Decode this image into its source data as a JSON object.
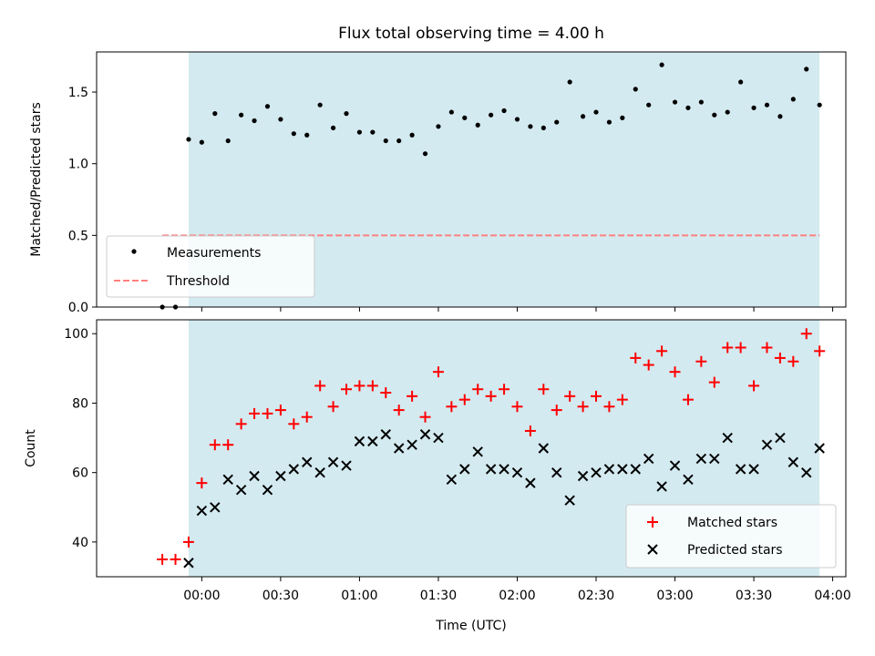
{
  "colors": {
    "observing_band": "#d3eaf0",
    "measurement": "#000000",
    "threshold": "#ff8080",
    "matched": "#ff0000",
    "predicted": "#000000",
    "axes": "#000000"
  },
  "chart_data": [
    {
      "type": "scatter",
      "title": "Flux total observing time = 4.00 h",
      "xlabel": "",
      "ylabel": "Matched/Predicted stars",
      "xlim": [
        "23:20",
        "04:05"
      ],
      "ylim": [
        0,
        1.78
      ],
      "yticks": [
        0.0,
        0.5,
        1.0,
        1.5
      ],
      "ytick_labels": [
        "0.0",
        "0.5",
        "1.0",
        "1.5"
      ],
      "x_tick_positions": [
        "00:00",
        "00:30",
        "01:00",
        "01:30",
        "02:00",
        "02:30",
        "03:00",
        "03:30",
        "04:00"
      ],
      "observing_window": [
        "23:55",
        "03:55"
      ],
      "legend_location": "lower-left",
      "series": [
        {
          "name": "Measurements",
          "marker": "dot",
          "x": [
            "23:45",
            "23:50",
            "23:55",
            "00:00",
            "00:05",
            "00:10",
            "00:15",
            "00:20",
            "00:25",
            "00:30",
            "00:35",
            "00:40",
            "00:45",
            "00:50",
            "00:55",
            "01:00",
            "01:05",
            "01:10",
            "01:15",
            "01:20",
            "01:25",
            "01:30",
            "01:35",
            "01:40",
            "01:45",
            "01:50",
            "01:55",
            "02:00",
            "02:05",
            "02:10",
            "02:15",
            "02:20",
            "02:25",
            "02:30",
            "02:35",
            "02:40",
            "02:45",
            "02:50",
            "02:55",
            "03:00",
            "03:05",
            "03:10",
            "03:15",
            "03:20",
            "03:25",
            "03:30",
            "03:35",
            "03:40",
            "03:45",
            "03:50",
            "03:55"
          ],
          "y": [
            0.0,
            0.0,
            1.17,
            1.15,
            1.35,
            1.16,
            1.34,
            1.3,
            1.4,
            1.31,
            1.21,
            1.2,
            1.41,
            1.25,
            1.35,
            1.22,
            1.22,
            1.16,
            1.16,
            1.2,
            1.07,
            1.26,
            1.36,
            1.32,
            1.27,
            1.34,
            1.37,
            1.31,
            1.26,
            1.25,
            1.29,
            1.57,
            1.33,
            1.36,
            1.29,
            1.32,
            1.52,
            1.41,
            1.69,
            1.43,
            1.39,
            1.43,
            1.34,
            1.36,
            1.57,
            1.39,
            1.41,
            1.33,
            1.45,
            1.66,
            1.41
          ]
        },
        {
          "name": "Threshold",
          "style": "dashed",
          "x": [
            "23:45",
            "03:55"
          ],
          "y": [
            0.5,
            0.5
          ]
        }
      ]
    },
    {
      "type": "scatter",
      "title": "",
      "xlabel": "Time (UTC)",
      "ylabel": "Count",
      "xlim": [
        "23:20",
        "04:05"
      ],
      "ylim": [
        30,
        104
      ],
      "yticks": [
        40,
        60,
        80,
        100
      ],
      "ytick_labels": [
        "40",
        "60",
        "80",
        "100"
      ],
      "xticks": [
        "00:00",
        "00:30",
        "01:00",
        "01:30",
        "02:00",
        "02:30",
        "03:00",
        "03:30",
        "04:00"
      ],
      "xtick_labels": [
        "00:00",
        "00:30",
        "01:00",
        "01:30",
        "02:00",
        "02:30",
        "03:00",
        "03:30",
        "04:00"
      ],
      "observing_window": [
        "23:55",
        "03:55"
      ],
      "legend_location": "lower-right",
      "series": [
        {
          "name": "Matched stars",
          "marker": "plus",
          "x": [
            "23:45",
            "23:50",
            "23:55",
            "00:00",
            "00:05",
            "00:10",
            "00:15",
            "00:20",
            "00:25",
            "00:30",
            "00:35",
            "00:40",
            "00:45",
            "00:50",
            "00:55",
            "01:00",
            "01:05",
            "01:10",
            "01:15",
            "01:20",
            "01:25",
            "01:30",
            "01:35",
            "01:40",
            "01:45",
            "01:50",
            "01:55",
            "02:00",
            "02:05",
            "02:10",
            "02:15",
            "02:20",
            "02:25",
            "02:30",
            "02:35",
            "02:40",
            "02:45",
            "02:50",
            "02:55",
            "03:00",
            "03:05",
            "03:10",
            "03:15",
            "03:20",
            "03:25",
            "03:30",
            "03:35",
            "03:40",
            "03:45",
            "03:50",
            "03:55"
          ],
          "y": [
            35,
            35,
            40,
            57,
            68,
            68,
            74,
            77,
            77,
            78,
            74,
            76,
            85,
            79,
            84,
            85,
            85,
            83,
            78,
            82,
            76,
            89,
            79,
            81,
            84,
            82,
            84,
            79,
            72,
            84,
            78,
            82,
            79,
            82,
            79,
            81,
            93,
            91,
            95,
            89,
            81,
            92,
            86,
            96,
            96,
            85,
            96,
            93,
            92,
            100,
            95
          ]
        },
        {
          "name": "Predicted stars",
          "marker": "x",
          "x": [
            "23:55",
            "00:00",
            "00:05",
            "00:10",
            "00:15",
            "00:20",
            "00:25",
            "00:30",
            "00:35",
            "00:40",
            "00:45",
            "00:50",
            "00:55",
            "01:00",
            "01:05",
            "01:10",
            "01:15",
            "01:20",
            "01:25",
            "01:30",
            "01:35",
            "01:40",
            "01:45",
            "01:50",
            "01:55",
            "02:00",
            "02:05",
            "02:10",
            "02:15",
            "02:20",
            "02:25",
            "02:30",
            "02:35",
            "02:40",
            "02:45",
            "02:50",
            "02:55",
            "03:00",
            "03:05",
            "03:10",
            "03:15",
            "03:20",
            "03:25",
            "03:30",
            "03:35",
            "03:40",
            "03:45",
            "03:50",
            "03:55"
          ],
          "y": [
            34,
            49,
            50,
            58,
            55,
            59,
            55,
            59,
            61,
            63,
            60,
            63,
            62,
            69,
            69,
            71,
            67,
            68,
            71,
            70,
            58,
            61,
            66,
            61,
            61,
            60,
            57,
            67,
            60,
            52,
            59,
            60,
            61,
            61,
            61,
            64,
            56,
            62,
            58,
            64,
            64,
            70,
            61,
            61,
            68,
            70,
            63,
            60,
            67
          ]
        }
      ]
    }
  ]
}
